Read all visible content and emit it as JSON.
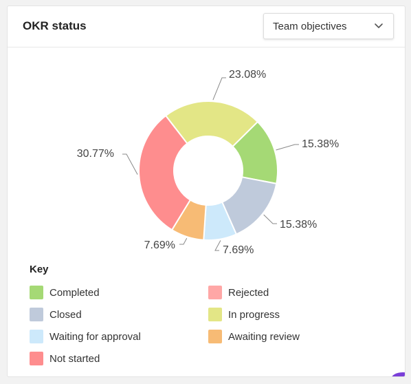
{
  "card": {
    "title": "OKR status",
    "dropdown": {
      "selected": "Team objectives",
      "icon": "chevron-down-icon"
    }
  },
  "chart_data": {
    "type": "pie",
    "style": "donut",
    "slices": [
      {
        "name": "Not started",
        "value": 30.77,
        "label": "30.77%",
        "color": "#fe8d8e"
      },
      {
        "name": "In progress",
        "value": 23.08,
        "label": "23.08%",
        "color": "#e3e686"
      },
      {
        "name": "Completed",
        "value": 15.38,
        "label": "15.38%",
        "color": "#a5d975"
      },
      {
        "name": "Closed",
        "value": 15.38,
        "label": "15.38%",
        "color": "#bfcadb"
      },
      {
        "name": "Waiting for approval",
        "value": 7.69,
        "label": "7.69%",
        "color": "#cde9fb"
      },
      {
        "name": "Awaiting review",
        "value": 7.69,
        "label": "7.69%",
        "color": "#f7bb75"
      }
    ],
    "legend_title": "Key",
    "legend": [
      {
        "name": "Completed",
        "color": "#a5d975"
      },
      {
        "name": "Rejected",
        "color": "#ffa7a6"
      },
      {
        "name": "Closed",
        "color": "#bfcadb"
      },
      {
        "name": "In progress",
        "color": "#e3e686"
      },
      {
        "name": "Waiting for approval",
        "color": "#cde9fb"
      },
      {
        "name": "Awaiting review",
        "color": "#f7bb75"
      },
      {
        "name": "Not started",
        "color": "#fe8d8e"
      }
    ],
    "legend_placement": "bottom-left"
  }
}
